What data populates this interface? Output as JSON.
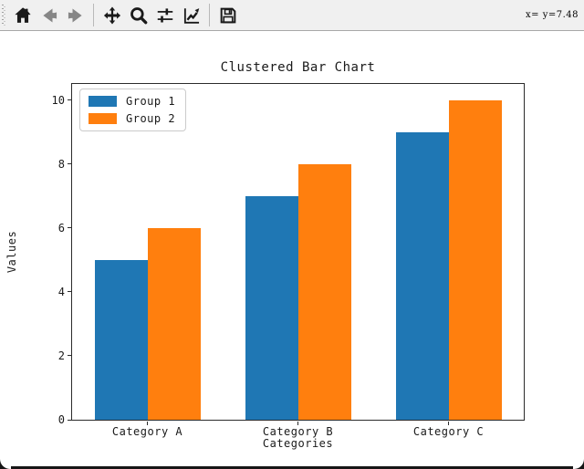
{
  "toolbar": {
    "background": "#f0f0f0",
    "status_text": "x= y=7.48",
    "buttons": [
      {
        "name": "home",
        "icon": "home-icon",
        "enabled": true
      },
      {
        "name": "back",
        "icon": "back-arrow-icon",
        "enabled": false
      },
      {
        "name": "forward",
        "icon": "forward-arrow-icon",
        "enabled": false
      },
      {
        "name": "pan",
        "icon": "pan-move-icon",
        "enabled": true
      },
      {
        "name": "zoom",
        "icon": "zoom-magnifier-icon",
        "enabled": true
      },
      {
        "name": "configure-subplots",
        "icon": "sliders-icon",
        "enabled": true
      },
      {
        "name": "edit-axes",
        "icon": "line-chart-icon",
        "enabled": true
      },
      {
        "name": "save",
        "icon": "floppy-disk-icon",
        "enabled": true
      }
    ],
    "groups": [
      [
        0,
        1,
        2
      ],
      [
        3,
        4,
        5,
        6
      ],
      [
        7
      ]
    ]
  },
  "chart_data": {
    "type": "bar",
    "title": "Clustered Bar Chart",
    "xlabel": "Categories",
    "ylabel": "Values",
    "categories": [
      "Category A",
      "Category B",
      "Category C"
    ],
    "series": [
      {
        "name": "Group 1",
        "color": "#1f77b4",
        "values": [
          5,
          7,
          9
        ]
      },
      {
        "name": "Group 2",
        "color": "#ff7f0e",
        "values": [
          6,
          8,
          10
        ]
      }
    ],
    "ylim": [
      0,
      10.5
    ],
    "yticks": [
      0,
      2,
      4,
      6,
      8,
      10
    ],
    "bar_width_fraction": 0.35,
    "legend_position": "upper left",
    "grid": false
  },
  "colors": {
    "group1": "#1f77b4",
    "group2": "#ff7f0e",
    "toolbar_bg": "#f0f0f0",
    "figure_bg": "#ffffff",
    "spine": "#2b2b2b",
    "window_edge": "#161616"
  }
}
